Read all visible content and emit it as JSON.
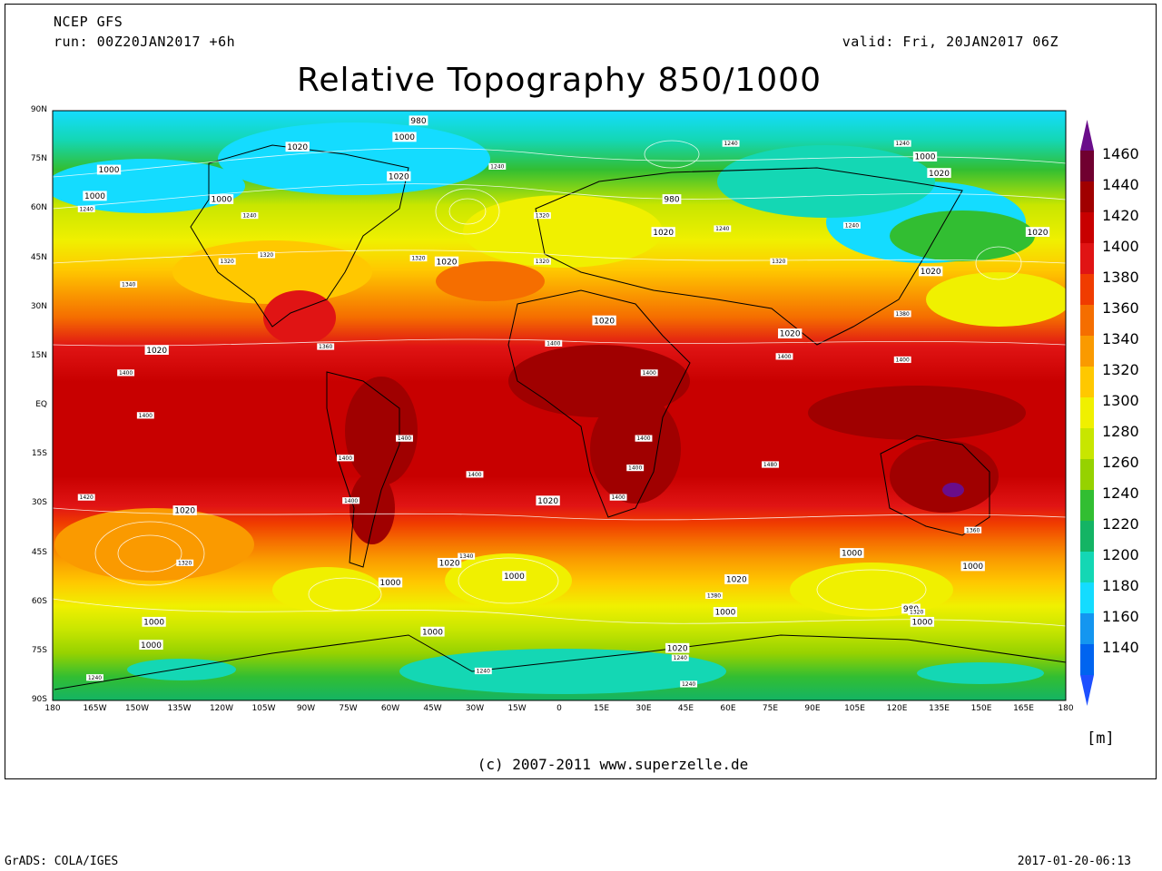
{
  "header": {
    "model": "NCEP GFS",
    "run": "run: 00Z20JAN2017 +6h",
    "valid": "valid: Fri, 20JAN2017 06Z",
    "title": "Relative Topography 850/1000"
  },
  "map": {
    "lat_labels": [
      "90N",
      "75N",
      "60N",
      "45N",
      "30N",
      "15N",
      "EQ",
      "15S",
      "30S",
      "45S",
      "60S",
      "75S",
      "90S"
    ],
    "lon_labels": [
      "180",
      "165W",
      "150W",
      "135W",
      "120W",
      "105W",
      "90W",
      "75W",
      "60W",
      "45W",
      "30W",
      "15W",
      "0",
      "15E",
      "30E",
      "45E",
      "60E",
      "75E",
      "90E",
      "105E",
      "120E",
      "135E",
      "150E",
      "165E",
      "180"
    ],
    "contour_labels": [
      {
        "text": "980",
        "lon": -50,
        "lat": 87
      },
      {
        "text": "1000",
        "lon": -55,
        "lat": 82
      },
      {
        "text": "1020",
        "lon": -93,
        "lat": 79
      },
      {
        "text": "1000",
        "lon": -160,
        "lat": 72
      },
      {
        "text": "1000",
        "lon": -165,
        "lat": 64
      },
      {
        "text": "1000",
        "lon": -120,
        "lat": 63
      },
      {
        "text": "1020",
        "lon": -57,
        "lat": 70
      },
      {
        "text": "980",
        "lon": 40,
        "lat": 63
      },
      {
        "text": "1020",
        "lon": 37,
        "lat": 53
      },
      {
        "text": "1000",
        "lon": 130,
        "lat": 76
      },
      {
        "text": "1020",
        "lon": 135,
        "lat": 71
      },
      {
        "text": "1020",
        "lon": 170,
        "lat": 53
      },
      {
        "text": "1020",
        "lon": 132,
        "lat": 41
      },
      {
        "text": "1020",
        "lon": -40,
        "lat": 44
      },
      {
        "text": "1020",
        "lon": 16,
        "lat": 26
      },
      {
        "text": "1020",
        "lon": 82,
        "lat": 22
      },
      {
        "text": "1020",
        "lon": -143,
        "lat": 17
      },
      {
        "text": "1020",
        "lon": -133,
        "lat": -32
      },
      {
        "text": "1020",
        "lon": -4,
        "lat": -29
      },
      {
        "text": "1020",
        "lon": -39,
        "lat": -48
      },
      {
        "text": "1020",
        "lon": 63,
        "lat": -53
      },
      {
        "text": "1000",
        "lon": -60,
        "lat": -54
      },
      {
        "text": "1000",
        "lon": -16,
        "lat": -52
      },
      {
        "text": "1000",
        "lon": 104,
        "lat": -45
      },
      {
        "text": "1000",
        "lon": 147,
        "lat": -49
      },
      {
        "text": "1000",
        "lon": -144,
        "lat": -66
      },
      {
        "text": "1000",
        "lon": -145,
        "lat": -73
      },
      {
        "text": "1000",
        "lon": -45,
        "lat": -69
      },
      {
        "text": "1000",
        "lon": 59,
        "lat": -63
      },
      {
        "text": "980",
        "lon": 125,
        "lat": -62
      },
      {
        "text": "1000",
        "lon": 129,
        "lat": -66
      },
      {
        "text": "1020",
        "lon": 42,
        "lat": -74
      }
    ],
    "small_labels": [
      {
        "text": "1240",
        "lon": -110,
        "lat": 58
      },
      {
        "text": "1240",
        "lon": -168,
        "lat": 60
      },
      {
        "text": "1340",
        "lon": -153,
        "lat": 37
      },
      {
        "text": "1320",
        "lon": -118,
        "lat": 44
      },
      {
        "text": "1320",
        "lon": -104,
        "lat": 46
      },
      {
        "text": "1320",
        "lon": -50,
        "lat": 45
      },
      {
        "text": "1320",
        "lon": -6,
        "lat": 58
      },
      {
        "text": "1320",
        "lon": -6,
        "lat": 44
      },
      {
        "text": "1240",
        "lon": -22,
        "lat": 73
      },
      {
        "text": "1240",
        "lon": 61,
        "lat": 80
      },
      {
        "text": "1240",
        "lon": 122,
        "lat": 80
      },
      {
        "text": "1240",
        "lon": 58,
        "lat": 54
      },
      {
        "text": "1240",
        "lon": 104,
        "lat": 55
      },
      {
        "text": "1320",
        "lon": 78,
        "lat": 44
      },
      {
        "text": "1360",
        "lon": -83,
        "lat": 18
      },
      {
        "text": "1400",
        "lon": -2,
        "lat": 19
      },
      {
        "text": "1400",
        "lon": 32,
        "lat": 10
      },
      {
        "text": "1400",
        "lon": 80,
        "lat": 15
      },
      {
        "text": "1400",
        "lon": 122,
        "lat": 14
      },
      {
        "text": "1380",
        "lon": 122,
        "lat": 28
      },
      {
        "text": "1400",
        "lon": -154,
        "lat": 10
      },
      {
        "text": "1400",
        "lon": -147,
        "lat": -3
      },
      {
        "text": "1400",
        "lon": -55,
        "lat": -10
      },
      {
        "text": "1400",
        "lon": -76,
        "lat": -16
      },
      {
        "text": "1400",
        "lon": -30,
        "lat": -21
      },
      {
        "text": "1400",
        "lon": 30,
        "lat": -10
      },
      {
        "text": "1400",
        "lon": 27,
        "lat": -19
      },
      {
        "text": "1400",
        "lon": 21,
        "lat": -28
      },
      {
        "text": "1480",
        "lon": 75,
        "lat": -18
      },
      {
        "text": "1420",
        "lon": -168,
        "lat": -28
      },
      {
        "text": "1400",
        "lon": -74,
        "lat": -29
      },
      {
        "text": "1320",
        "lon": -133,
        "lat": -48
      },
      {
        "text": "1340",
        "lon": -33,
        "lat": -46
      },
      {
        "text": "1380",
        "lon": 55,
        "lat": -58
      },
      {
        "text": "1320",
        "lon": 127,
        "lat": -63
      },
      {
        "text": "1360",
        "lon": 147,
        "lat": -38
      },
      {
        "text": "1240",
        "lon": -165,
        "lat": -83
      },
      {
        "text": "1240",
        "lon": -27,
        "lat": -81
      },
      {
        "text": "1240",
        "lon": 46,
        "lat": -85
      },
      {
        "text": "1240",
        "lon": 43,
        "lat": -77
      }
    ]
  },
  "colorbar": {
    "values": [
      "1460",
      "1440",
      "1420",
      "1400",
      "1380",
      "1360",
      "1340",
      "1320",
      "1300",
      "1280",
      "1260",
      "1240",
      "1220",
      "1200",
      "1180",
      "1160",
      "1140"
    ],
    "colors": [
      "#700030",
      "#a00000",
      "#c80000",
      "#e01414",
      "#f03c00",
      "#f56e00",
      "#fa9a00",
      "#ffc800",
      "#f0f000",
      "#c8e600",
      "#96d200",
      "#32be32",
      "#14b464",
      "#14d7b4",
      "#14dcff",
      "#1496f0",
      "#0064f0"
    ],
    "top_color": "#6a0d8a",
    "bottom_color": "#1e50ff",
    "unit": "[m]"
  },
  "footer": {
    "copyright": "(c) 2007-2011 www.superzelle.de",
    "software": "GrADS: COLA/IGES",
    "timestamp": "2017-01-20-06:13"
  }
}
